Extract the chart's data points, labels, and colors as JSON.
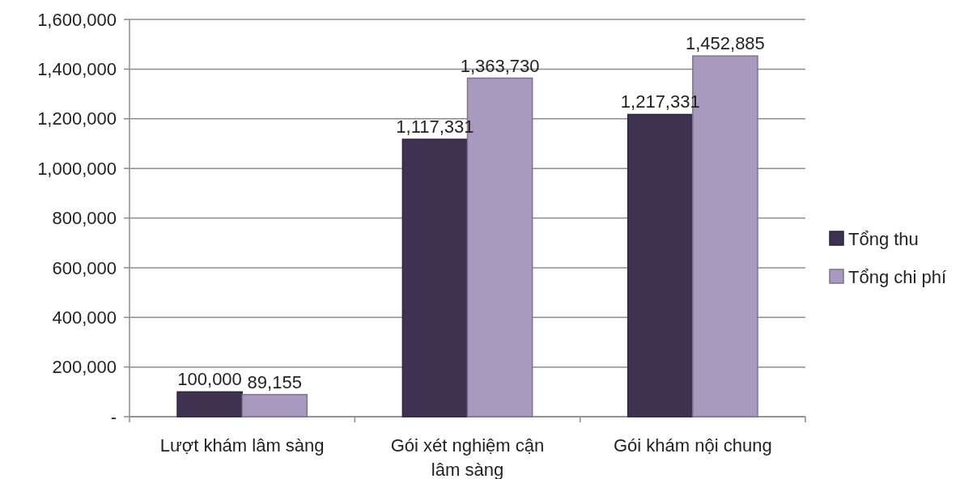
{
  "chart_data": {
    "type": "bar",
    "categories": [
      "Lượt khám lâm sàng",
      "Gói xét nghiệm cận lâm sàng",
      "Gói khám nội chung"
    ],
    "series": [
      {
        "name": "Tổng thu",
        "color": "#3f3150",
        "values": [
          100000,
          1117331,
          1217331
        ],
        "value_labels": [
          "100,000",
          "1,117,331",
          "1,217,331"
        ]
      },
      {
        "name": "Tổng chi phí",
        "color": "#a899bf",
        "values": [
          89155,
          1363730,
          1452885
        ],
        "value_labels": [
          "89,155",
          "1,363,730",
          "1,452,885"
        ]
      }
    ],
    "ylim": [
      0,
      1600000
    ],
    "yticks": [
      {
        "value": 0,
        "label": "-"
      },
      {
        "value": 200000,
        "label": "200,000"
      },
      {
        "value": 400000,
        "label": "400,000"
      },
      {
        "value": 600000,
        "label": "600,000"
      },
      {
        "value": 800000,
        "label": "800,000"
      },
      {
        "value": 1000000,
        "label": "1,000,000"
      },
      {
        "value": 1200000,
        "label": "1,200,000"
      },
      {
        "value": 1400000,
        "label": "1,400,000"
      },
      {
        "value": 1600000,
        "label": "1,600,000"
      }
    ],
    "grid": "y",
    "legend": "right"
  }
}
